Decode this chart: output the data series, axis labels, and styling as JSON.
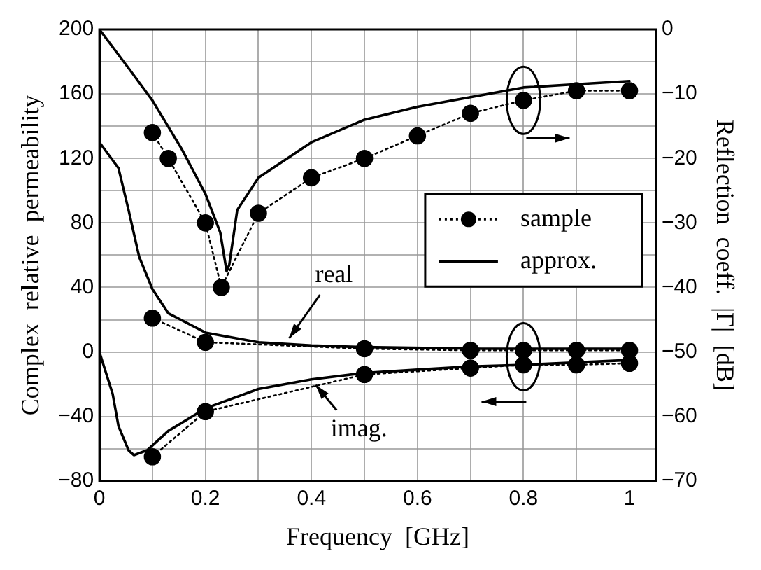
{
  "chart_data": {
    "type": "line",
    "xlabel": "Frequency  [GHz]",
    "ylabel": "Complex  relative  permeability",
    "y2label": "Reflection  coeff.  |Γ|  [dB]",
    "xlim": [
      0,
      1.05
    ],
    "xticks": [
      0,
      {
        "value": 0.1,
        "label": null
      },
      0.2,
      {
        "value": 0.3,
        "label": null
      },
      0.4,
      {
        "value": 0.5,
        "label": null
      },
      0.6,
      {
        "value": 0.7,
        "label": null
      },
      0.8,
      {
        "value": 0.9,
        "label": null
      },
      1
    ],
    "ylim": [
      -80,
      200
    ],
    "yticks": [
      -80,
      {
        "value": -60,
        "label": null
      },
      -40,
      {
        "value": -20,
        "label": null
      },
      0,
      {
        "value": 20,
        "label": null
      },
      40,
      {
        "value": 60,
        "label": null
      },
      80,
      {
        "value": 100,
        "label": null
      },
      120,
      {
        "value": 140,
        "label": null
      },
      160,
      {
        "value": 180,
        "label": null
      },
      200
    ],
    "y2lim": [
      -70,
      0
    ],
    "y2ticks": [
      -70,
      -60,
      -50,
      -40,
      -30,
      -20,
      -10,
      0
    ],
    "grid": true,
    "legend": "right",
    "annotations": [
      {
        "text": "real",
        "x": 0.35,
        "y": 5
      },
      {
        "text": "imag.",
        "x": 0.4,
        "y": -17
      }
    ],
    "series": [
      {
        "name": "sample",
        "type": "line",
        "axis": "y2",
        "color": "#000000",
        "line_style": "dotted",
        "marker": "circle",
        "x": [
          0.1,
          0.13,
          0.2,
          0.23,
          0.3,
          0.4,
          0.5,
          0.6,
          0.7,
          0.8,
          0.9,
          1.0
        ],
        "values": [
          -16,
          -20,
          -30,
          -40,
          -28.5,
          -23,
          -20,
          -16.5,
          -13,
          -11,
          -9.5,
          -9.5
        ]
      },
      {
        "name": "approx.",
        "type": "line",
        "axis": "y2",
        "color": "#000000",
        "line_style": "solid",
        "marker": "none",
        "x": [
          0,
          0.055,
          0.1,
          0.155,
          0.2,
          0.228,
          0.24,
          0.245,
          0.26,
          0.3,
          0.4,
          0.5,
          0.6,
          0.7,
          0.8,
          0.9,
          1.0
        ],
        "values": [
          0,
          -6,
          -11,
          -18.5,
          -25.5,
          -31.5,
          -37.5,
          -36.5,
          -28,
          -23,
          -17.5,
          -14,
          -12,
          -10.5,
          -9,
          -8.5,
          -8
        ]
      },
      {
        "type": "line",
        "color": "#000000",
        "line_style": "dotted",
        "marker": "circle",
        "x": [
          0.1,
          0.2,
          0.5,
          0.7,
          0.8,
          0.9,
          1.0
        ],
        "values": [
          21,
          6,
          2,
          1,
          1,
          1,
          1
        ]
      },
      {
        "type": "line",
        "color": "#000000",
        "line_style": "solid",
        "marker": "none",
        "x": [
          0,
          0.036,
          0.055,
          0.075,
          0.1,
          0.13,
          0.2,
          0.3,
          0.4,
          0.5,
          0.72,
          1.0
        ],
        "values": [
          130,
          114,
          88,
          59,
          39,
          24,
          12,
          6,
          4,
          3,
          2,
          2
        ]
      },
      {
        "type": "line",
        "color": "#000000",
        "line_style": "dotted",
        "marker": "circle",
        "x": [
          0.1,
          0.2,
          0.5,
          0.7,
          0.8,
          0.9,
          1.0
        ],
        "values": [
          -65,
          -37,
          -14,
          -10,
          -8,
          -8,
          -7
        ]
      },
      {
        "type": "line",
        "color": "#000000",
        "line_style": "solid",
        "marker": "none",
        "x": [
          0,
          0.025,
          0.036,
          0.055,
          0.065,
          0.09,
          0.13,
          0.2,
          0.3,
          0.4,
          0.5,
          0.6,
          0.7,
          0.8,
          1.0
        ],
        "values": [
          0,
          -26,
          -46,
          -61,
          -64,
          -61,
          -49,
          -35,
          -23,
          -17,
          -13,
          -11,
          -9,
          -8,
          -5
        ]
      }
    ]
  }
}
